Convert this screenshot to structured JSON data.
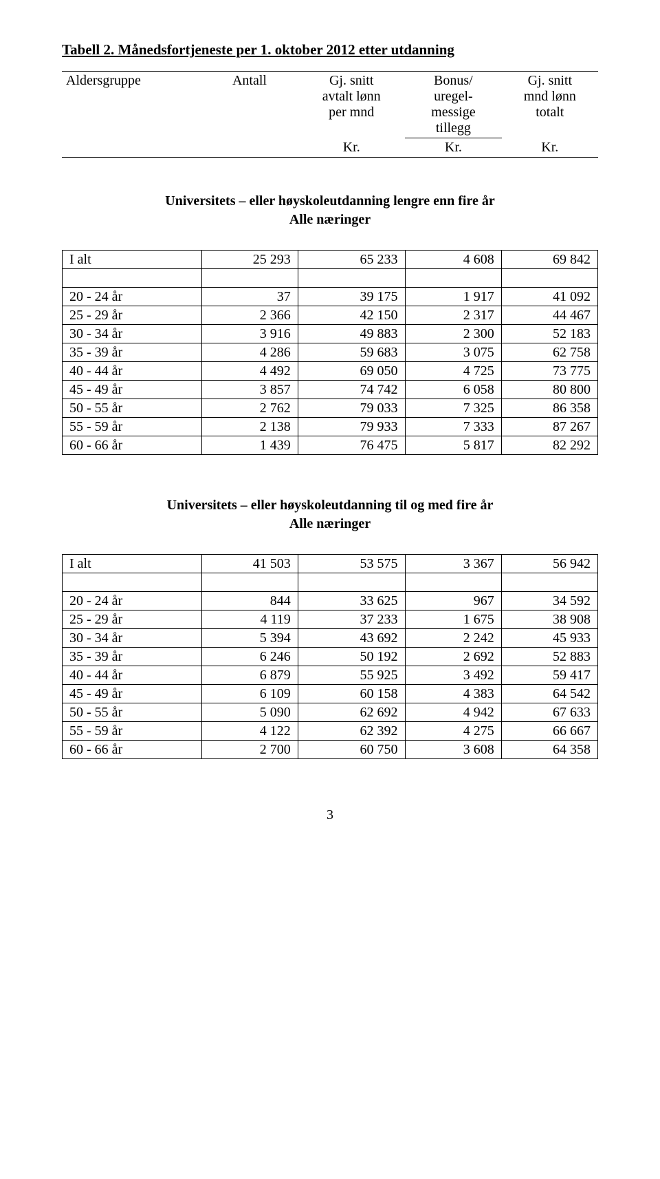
{
  "title": "Tabell 2. Månedsfortjeneste per 1. oktober 2012 etter utdanning",
  "header": {
    "col1": "Aldersgruppe",
    "col2": "Antall",
    "col3_l1": "Gj. snitt",
    "col3_l2": "avtalt lønn",
    "col3_l3": "per mnd",
    "col4_l1": "Bonus/",
    "col4_l2": "uregel-",
    "col4_l3": "messige",
    "col4_l4": "tillegg",
    "col5_l1": "Gj. snitt",
    "col5_l2": "mnd lønn",
    "col5_l3": "totalt",
    "kr": "Kr."
  },
  "section1": {
    "heading_l1": "Universitets – eller høyskoleutdanning lengre enn fire år",
    "heading_l2": "Alle næringer",
    "rows": [
      {
        "label": "I alt",
        "a": "25 293",
        "b": "65 233",
        "c": "4 608",
        "d": "69 842"
      },
      {
        "spacer": true
      },
      {
        "label": "20 - 24 år",
        "a": "37",
        "b": "39 175",
        "c": "1 917",
        "d": "41 092"
      },
      {
        "label": "25 - 29 år",
        "a": "2 366",
        "b": "42 150",
        "c": "2 317",
        "d": "44 467"
      },
      {
        "label": "30 - 34 år",
        "a": "3 916",
        "b": "49 883",
        "c": "2 300",
        "d": "52 183"
      },
      {
        "label": "35 - 39 år",
        "a": "4 286",
        "b": "59 683",
        "c": "3 075",
        "d": "62 758"
      },
      {
        "label": "40 - 44 år",
        "a": "4 492",
        "b": "69 050",
        "c": "4 725",
        "d": "73 775"
      },
      {
        "label": "45 - 49 år",
        "a": "3 857",
        "b": "74 742",
        "c": "6 058",
        "d": "80 800"
      },
      {
        "label": "50 - 55 år",
        "a": "2 762",
        "b": "79 033",
        "c": "7 325",
        "d": "86 358"
      },
      {
        "label": "55 - 59 år",
        "a": "2 138",
        "b": "79 933",
        "c": "7 333",
        "d": "87 267"
      },
      {
        "label": "60 - 66 år",
        "a": "1 439",
        "b": "76 475",
        "c": "5 817",
        "d": "82 292"
      }
    ]
  },
  "section2": {
    "heading_l1": "Universitets – eller høyskoleutdanning til og med fire år",
    "heading_l2": "Alle næringer",
    "rows": [
      {
        "label": "I alt",
        "a": "41 503",
        "b": "53 575",
        "c": "3 367",
        "d": "56 942"
      },
      {
        "spacer": true
      },
      {
        "label": "20 - 24 år",
        "a": "844",
        "b": "33 625",
        "c": "967",
        "d": "34 592"
      },
      {
        "label": "25 - 29 år",
        "a": "4 119",
        "b": "37 233",
        "c": "1 675",
        "d": "38 908"
      },
      {
        "label": "30 - 34 år",
        "a": "5 394",
        "b": "43 692",
        "c": "2 242",
        "d": "45 933"
      },
      {
        "label": "35 - 39 år",
        "a": "6 246",
        "b": "50 192",
        "c": "2 692",
        "d": "52 883"
      },
      {
        "label": "40 - 44 år",
        "a": "6 879",
        "b": "55 925",
        "c": "3 492",
        "d": "59 417"
      },
      {
        "label": "45 - 49 år",
        "a": "6 109",
        "b": "60 158",
        "c": "4 383",
        "d": "64 542"
      },
      {
        "label": "50 - 55 år",
        "a": "5 090",
        "b": "62 692",
        "c": "4 942",
        "d": "67 633"
      },
      {
        "label": "55 - 59 år",
        "a": "4 122",
        "b": "62 392",
        "c": "4 275",
        "d": "66 667"
      },
      {
        "label": "60 - 66 år",
        "a": "2 700",
        "b": "60 750",
        "c": "3 608",
        "d": "64 358"
      }
    ]
  },
  "page_number": "3"
}
